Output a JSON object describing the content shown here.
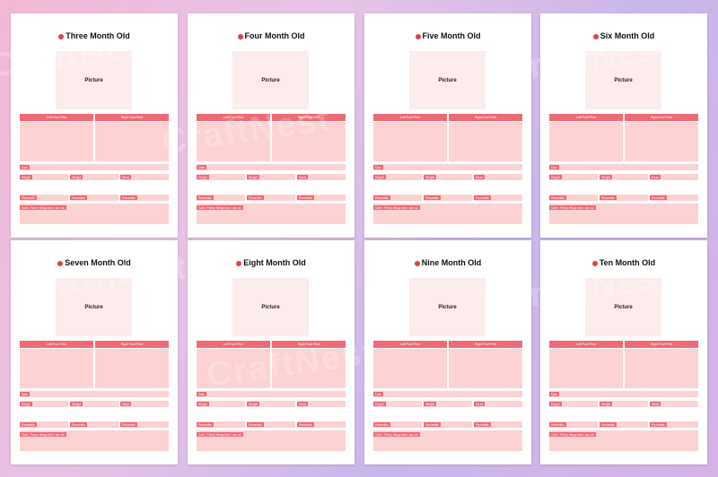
{
  "pages": [
    {
      "title": "Three Month Old"
    },
    {
      "title": "Four Month Old"
    },
    {
      "title": "Five Month Old"
    },
    {
      "title": "Six Month Old"
    },
    {
      "title": "Seven Month Old"
    },
    {
      "title": "Eight Month Old"
    },
    {
      "title": "Nine Month Old"
    },
    {
      "title": "Ten Month Old"
    }
  ],
  "labels": {
    "picture": "Picture",
    "left_foot": "Left Foot Print",
    "right_foot": "Right Foot Print",
    "date": "Date",
    "height": "Height",
    "weight": "Weight",
    "head": "Head",
    "percentile": "Percentile",
    "cute": "Cute / Funny things that I can do"
  },
  "watermark": "CraftNest"
}
